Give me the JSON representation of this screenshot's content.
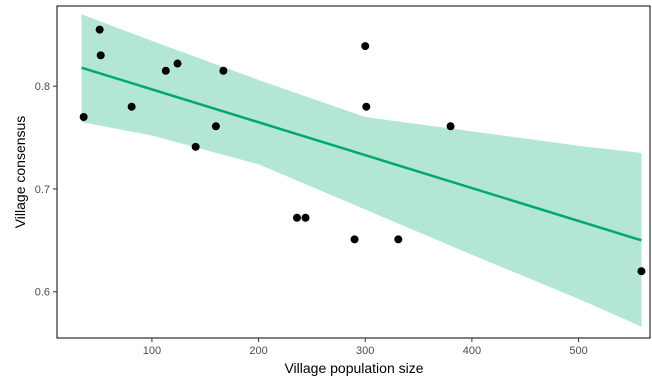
{
  "chart_data": {
    "type": "scatter",
    "title": "",
    "xlabel": "Village population size",
    "ylabel": "Village consensus",
    "xlim": [
      11,
      567
    ],
    "ylim": [
      0.555,
      0.878
    ],
    "x_ticks": [
      100,
      200,
      300,
      400,
      500
    ],
    "x_tick_labels": [
      "100",
      "200",
      "300",
      "400",
      "500"
    ],
    "y_ticks": [
      0.6,
      0.7,
      0.8
    ],
    "y_tick_labels": [
      "0.6",
      "0.7",
      "0.8"
    ],
    "grid": false,
    "legend": "none",
    "points": [
      {
        "x": 36,
        "y": 0.77
      },
      {
        "x": 51,
        "y": 0.855
      },
      {
        "x": 52,
        "y": 0.83
      },
      {
        "x": 81,
        "y": 0.78
      },
      {
        "x": 113,
        "y": 0.815
      },
      {
        "x": 124,
        "y": 0.822
      },
      {
        "x": 141,
        "y": 0.741
      },
      {
        "x": 160,
        "y": 0.761
      },
      {
        "x": 167,
        "y": 0.815
      },
      {
        "x": 236,
        "y": 0.672
      },
      {
        "x": 244,
        "y": 0.672
      },
      {
        "x": 290,
        "y": 0.651
      },
      {
        "x": 300,
        "y": 0.839
      },
      {
        "x": 301,
        "y": 0.78
      },
      {
        "x": 331,
        "y": 0.651
      },
      {
        "x": 380,
        "y": 0.761
      },
      {
        "x": 559,
        "y": 0.62
      }
    ],
    "fit": {
      "x": [
        34,
        559
      ],
      "y": [
        0.818,
        0.65
      ]
    },
    "confidence_band": {
      "x": [
        34,
        100,
        200,
        300,
        400,
        500,
        559
      ],
      "lower": [
        0.765,
        0.752,
        0.724,
        0.68,
        0.636,
        0.593,
        0.566
      ],
      "upper": [
        0.87,
        0.844,
        0.806,
        0.77,
        0.756,
        0.742,
        0.735
      ]
    },
    "colors": {
      "points": "#000000",
      "fit_line": "#00a86b",
      "band": "#b3e7d4",
      "axes": "#000000",
      "tick_text": "#4d4d4d"
    }
  }
}
